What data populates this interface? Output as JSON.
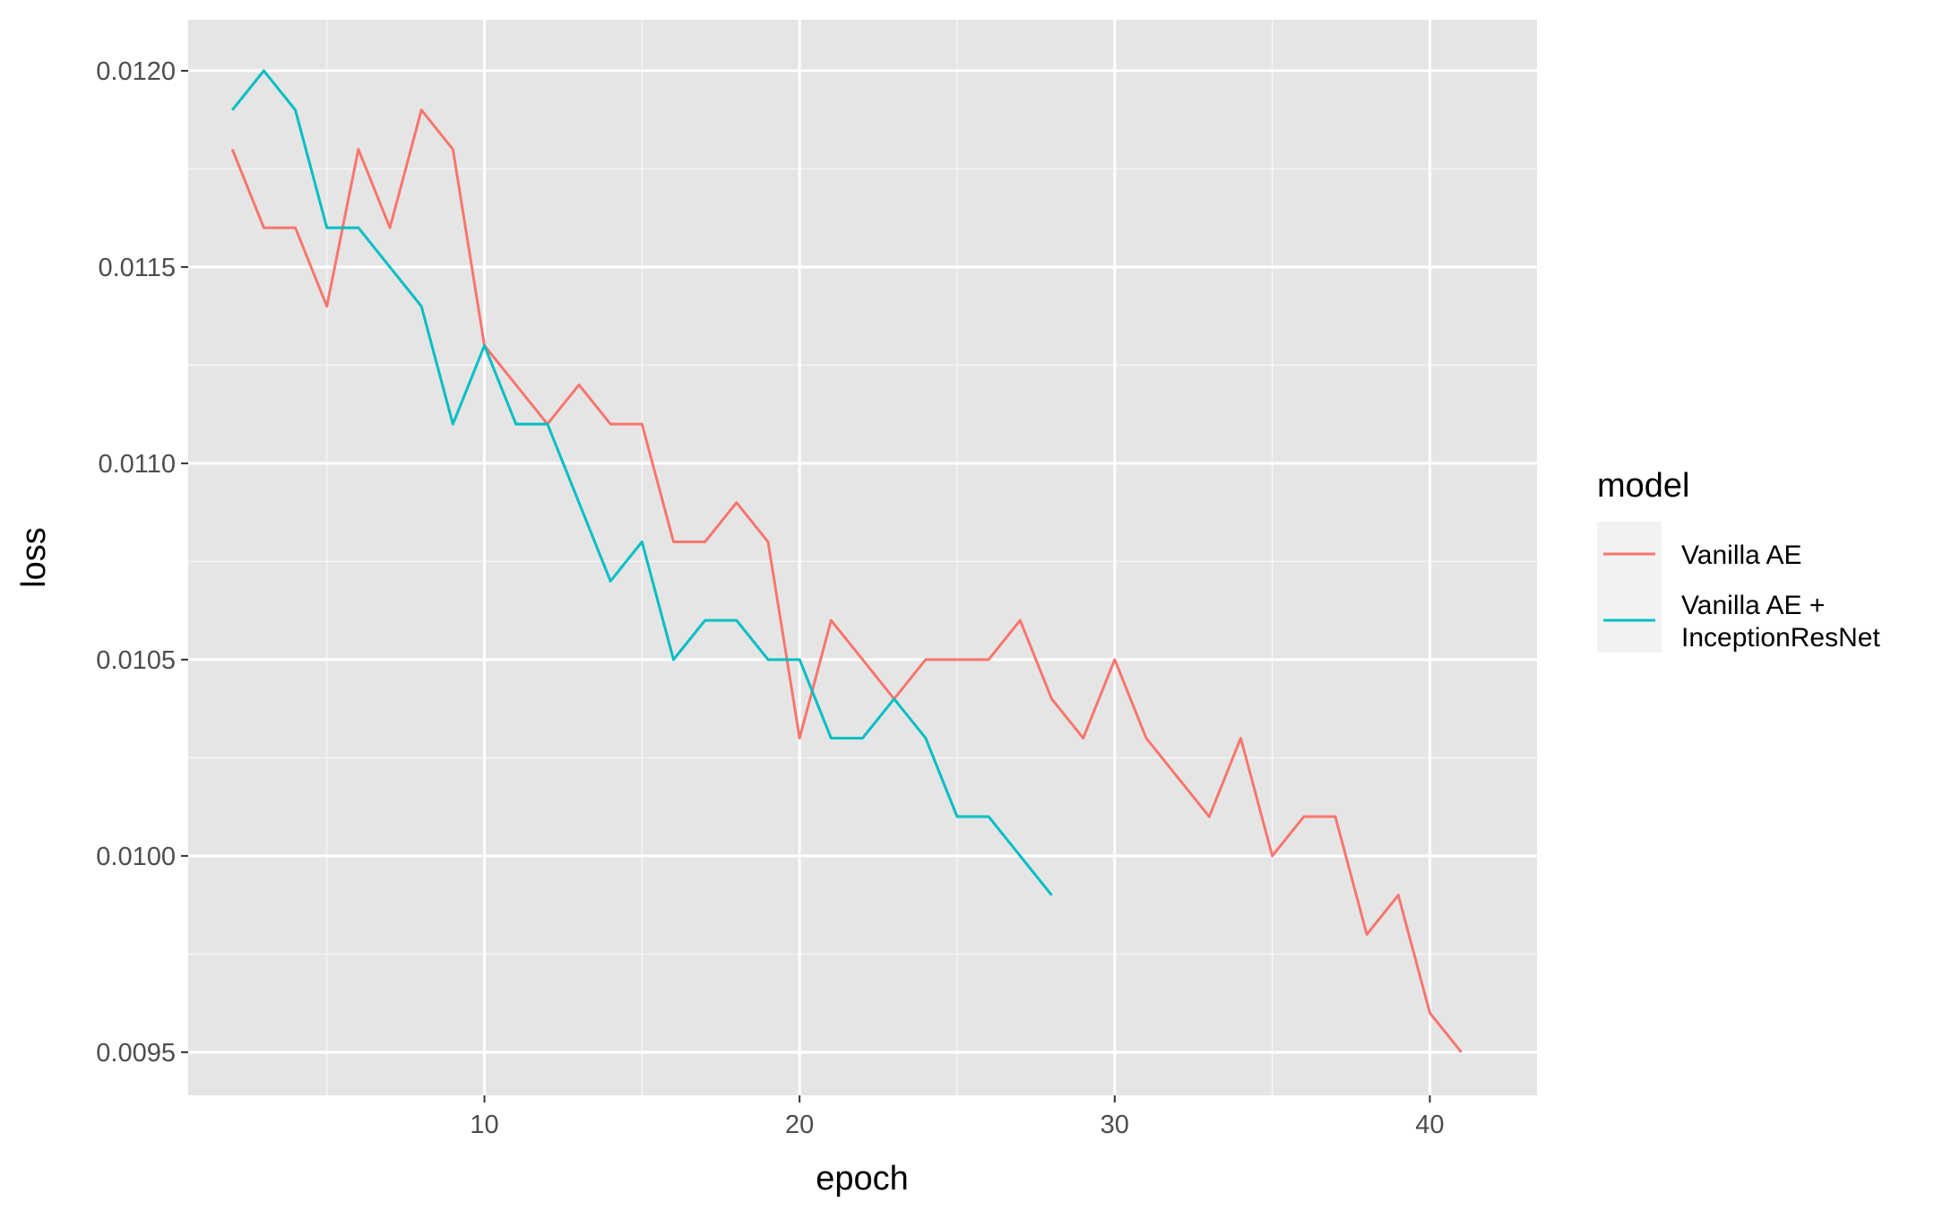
{
  "chart_data": {
    "type": "line",
    "xlabel": "epoch",
    "ylabel": "loss",
    "xlim": [
      0.6,
      43.4
    ],
    "ylim": [
      0.00939,
      0.01213
    ],
    "x_ticks": [
      10,
      20,
      30,
      40
    ],
    "x_minor_ticks": [
      5,
      15,
      25,
      35
    ],
    "y_ticks": [
      0.0095,
      0.01,
      0.0105,
      0.011,
      0.0115,
      0.012
    ],
    "y_tick_labels": [
      "0.0095",
      "0.0100",
      "0.0105",
      "0.0110",
      "0.0115",
      "0.0120"
    ],
    "y_minor_ticks": [
      0.00975,
      0.01025,
      0.01075,
      0.01125,
      0.01175
    ],
    "grid": true,
    "panel_background": "#e5e5e5",
    "legend": {
      "title": "model",
      "position": "right",
      "entries": [
        "Vanilla AE",
        "Vanilla AE +\nInceptionResNet"
      ]
    },
    "series": [
      {
        "name": "Vanilla AE",
        "color": "#f8766d",
        "x": [
          2,
          3,
          4,
          5,
          6,
          7,
          8,
          9,
          10,
          11,
          12,
          13,
          14,
          15,
          16,
          17,
          18,
          19,
          20,
          21,
          22,
          23,
          24,
          25,
          26,
          27,
          28,
          29,
          30,
          31,
          32,
          33,
          34,
          35,
          36,
          37,
          38,
          39,
          40,
          41
        ],
        "y": [
          0.0118,
          0.0116,
          0.0116,
          0.0114,
          0.0118,
          0.0116,
          0.0119,
          0.0118,
          0.0113,
          0.0112,
          0.0111,
          0.0112,
          0.0111,
          0.0111,
          0.0108,
          0.0108,
          0.0109,
          0.0108,
          0.0103,
          0.0106,
          0.0105,
          0.0104,
          0.0105,
          0.0105,
          0.0105,
          0.0106,
          0.0104,
          0.0103,
          0.0105,
          0.0103,
          0.0102,
          0.0101,
          0.0103,
          0.01,
          0.0101,
          0.0101,
          0.0098,
          0.0099,
          0.0096,
          0.0095
        ]
      },
      {
        "name": "Vanilla AE +\nInceptionResNet",
        "color": "#00bfc4",
        "x": [
          2,
          3,
          4,
          5,
          6,
          7,
          8,
          9,
          10,
          11,
          12,
          13,
          14,
          15,
          16,
          17,
          18,
          19,
          20,
          21,
          22,
          23,
          24,
          25,
          26,
          27,
          28
        ],
        "y": [
          0.0119,
          0.012,
          0.0119,
          0.0116,
          0.0116,
          0.0115,
          0.0114,
          0.0111,
          0.0113,
          0.0111,
          0.0111,
          0.0109,
          0.0107,
          0.0108,
          0.0105,
          0.0106,
          0.0106,
          0.0105,
          0.0105,
          0.0103,
          0.0103,
          0.0104,
          0.0103,
          0.0101,
          0.0101,
          0.01,
          0.0099
        ]
      }
    ]
  }
}
